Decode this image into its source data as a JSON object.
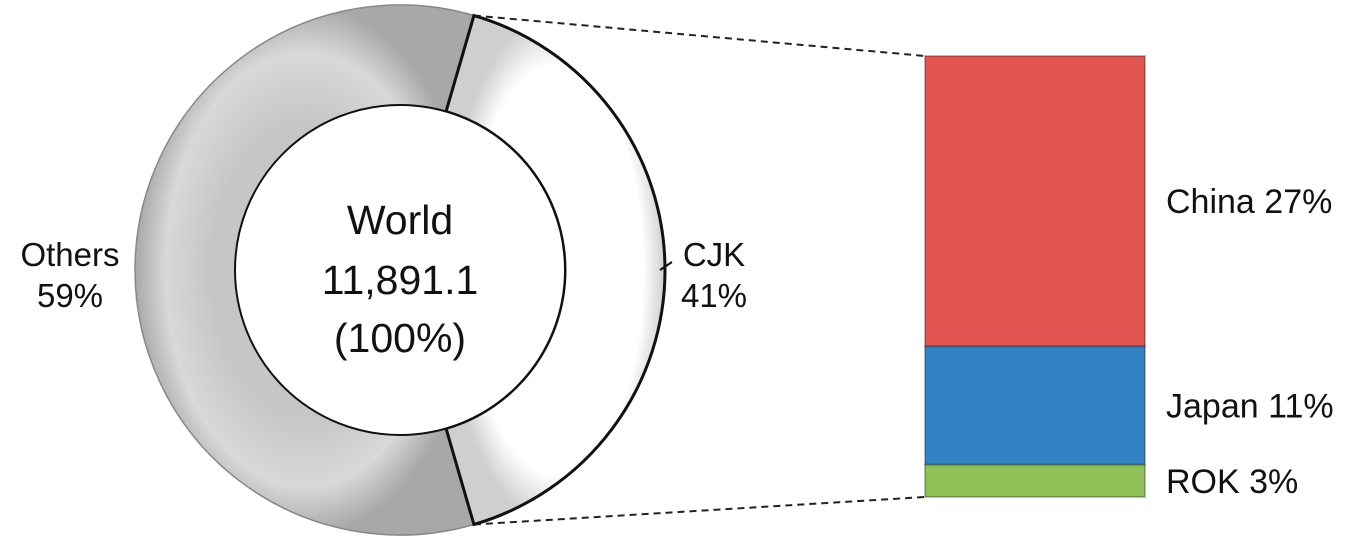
{
  "chart_data": [
    {
      "type": "pie",
      "variant": "donut",
      "center_text": {
        "title": "World",
        "value": "11,891.1",
        "share": "(100%)"
      },
      "slices": [
        {
          "name": "Others",
          "value": 59,
          "label": "Others",
          "pct_label": "59%",
          "color": "#d0d0d0"
        },
        {
          "name": "CJK",
          "value": 41,
          "label": "CJK",
          "pct_label": "41%",
          "color": "#ffffff"
        }
      ]
    },
    {
      "type": "bar",
      "variant": "stacked",
      "breakdown_of": "CJK",
      "segments": [
        {
          "name": "China",
          "value": 27,
          "label": "China 27%",
          "color": "#e05552"
        },
        {
          "name": "Japan",
          "value": 11,
          "label": "Japan 11%",
          "color": "#3282c4"
        },
        {
          "name": "ROK",
          "value": 3,
          "label": "ROK 3%",
          "color": "#8fc158"
        }
      ]
    }
  ]
}
